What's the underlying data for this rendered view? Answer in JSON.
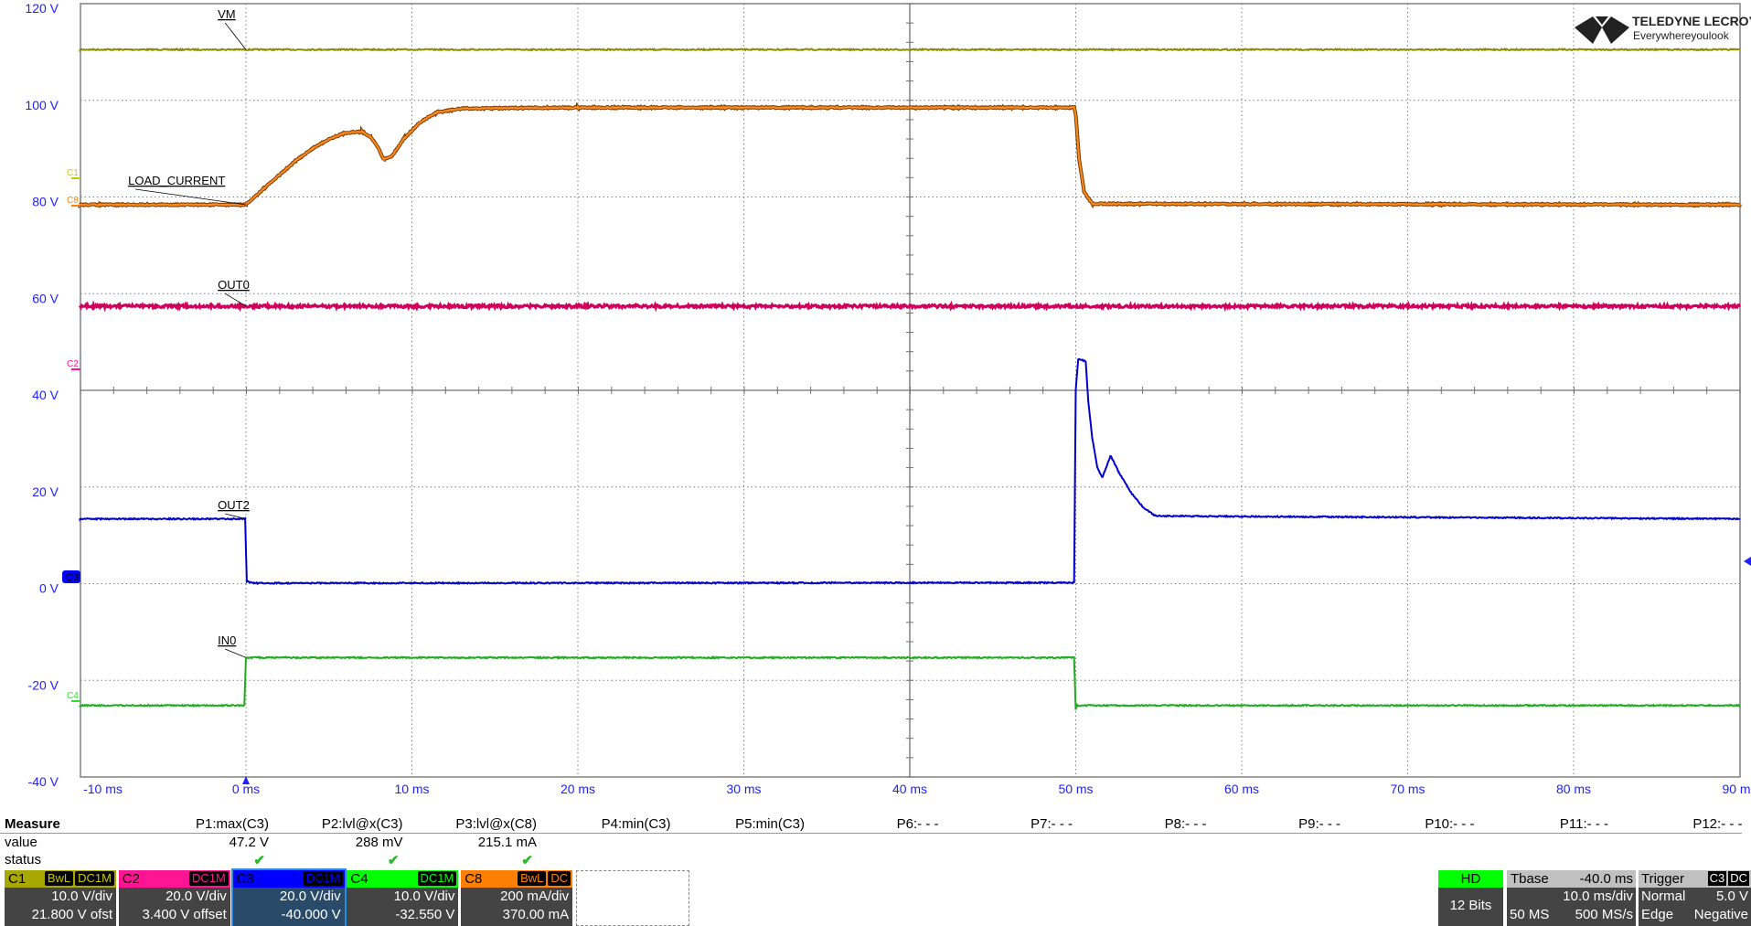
{
  "logo": {
    "brand": "TELEDYNE LECROY",
    "tagline": "Everywhereyoulook"
  },
  "axes": {
    "y_ticks": [
      "120 V",
      "100 V",
      "80 V",
      "60 V",
      "40 V",
      "20 V",
      "0 V",
      "-20 V",
      "-40 V"
    ],
    "x_ticks": [
      "-10 ms",
      "0 ms",
      "10 ms",
      "20 ms",
      "30 ms",
      "40 ms",
      "50 ms",
      "60 ms",
      "70 ms",
      "80 ms",
      "90 ms"
    ]
  },
  "colors": {
    "C1": "#a8a800",
    "C2": "#ff1493",
    "C3": "#0000ff",
    "C4": "#00ff00",
    "C8": "#ff8000",
    "grid": "#808080",
    "axis_text": "#2020ff"
  },
  "traces": [
    {
      "channel": "C1",
      "label": "VM",
      "color": "#8c8c00",
      "points": [
        [
          -10,
          110.5
        ],
        [
          90,
          110.5
        ]
      ]
    },
    {
      "channel": "C8",
      "label": "LOAD_CURRENT",
      "color": "#e07000",
      "points": [
        [
          -10,
          78.4
        ],
        [
          0,
          78.4
        ],
        [
          1,
          81.5
        ],
        [
          2,
          84.5
        ],
        [
          3,
          87.5
        ],
        [
          4,
          90
        ],
        [
          5,
          92
        ],
        [
          6,
          93.3
        ],
        [
          7,
          93.5
        ],
        [
          7.5,
          92.5
        ],
        [
          8,
          90
        ],
        [
          8.3,
          87.8
        ],
        [
          8.8,
          88.5
        ],
        [
          9.5,
          92
        ],
        [
          10.5,
          95.5
        ],
        [
          11.5,
          97.5
        ],
        [
          13,
          98.3
        ],
        [
          20,
          98.5
        ],
        [
          49.9,
          98.5
        ],
        [
          50,
          97
        ],
        [
          50.2,
          88
        ],
        [
          50.5,
          81
        ],
        [
          51,
          78.6
        ],
        [
          90,
          78.4
        ]
      ]
    },
    {
      "channel": "C2",
      "label": "OUT0",
      "color": "#d0005a",
      "points": [
        [
          -10,
          57.4
        ],
        [
          90,
          57.4
        ]
      ]
    },
    {
      "channel": "C3",
      "label": "OUT2",
      "color": "#0000cc",
      "points": [
        [
          -10,
          13.4
        ],
        [
          -0.05,
          13.4
        ],
        [
          0.05,
          0.5
        ],
        [
          0.5,
          0.1
        ],
        [
          49.9,
          0.2
        ],
        [
          50,
          40
        ],
        [
          50.15,
          46.5
        ],
        [
          50.6,
          46
        ],
        [
          50.75,
          38
        ],
        [
          51,
          30
        ],
        [
          51.3,
          24
        ],
        [
          51.6,
          22
        ],
        [
          52.1,
          26.5
        ],
        [
          52.6,
          23
        ],
        [
          53.3,
          19
        ],
        [
          54,
          16
        ],
        [
          54.8,
          14
        ],
        [
          90,
          13.4
        ]
      ]
    },
    {
      "channel": "C4",
      "label": "IN0",
      "color": "#22aa22",
      "points": [
        [
          -10,
          -25.2
        ],
        [
          -0.1,
          -25.2
        ],
        [
          0,
          -15.3
        ],
        [
          49.9,
          -15.3
        ],
        [
          50,
          -26
        ],
        [
          50.1,
          -25.2
        ],
        [
          90,
          -25.2
        ]
      ]
    }
  ],
  "channel_markers": [
    "C1",
    "C8",
    "C2",
    "C3",
    "C4"
  ],
  "measure": {
    "title": "Measure",
    "row_value": "value",
    "row_status": "status",
    "params": [
      {
        "name": "P1:max(C3)",
        "value": "47.2 V",
        "status": "✔"
      },
      {
        "name": "P2:lvl@x(C3)",
        "value": "288 mV",
        "status": "✔"
      },
      {
        "name": "P3:lvl@x(C8)",
        "value": "215.1 mA",
        "status": "✔"
      },
      {
        "name": "P4:min(C3)",
        "value": "",
        "status": ""
      },
      {
        "name": "P5:min(C3)",
        "value": "",
        "status": ""
      },
      {
        "name": "P6:- - -",
        "value": "",
        "status": ""
      },
      {
        "name": "P7:- - -",
        "value": "",
        "status": ""
      },
      {
        "name": "P8:- - -",
        "value": "",
        "status": ""
      },
      {
        "name": "P9:- - -",
        "value": "",
        "status": ""
      },
      {
        "name": "P10:- - -",
        "value": "",
        "status": ""
      },
      {
        "name": "P11:- - -",
        "value": "",
        "status": ""
      },
      {
        "name": "P12:- - -",
        "value": "",
        "status": ""
      }
    ]
  },
  "channels": [
    {
      "name": "C1",
      "tags": [
        "BwL",
        "DC1M"
      ],
      "scale": "10.0 V/div",
      "offset": "21.800 V ofst",
      "color": "#a8a800",
      "tagcolor": "#c8c800"
    },
    {
      "name": "C2",
      "tags": [
        "DC1M"
      ],
      "scale": "20.0 V/div",
      "offset": "3.400 V offset",
      "color": "#ff1493",
      "tagcolor": "#ff1493"
    },
    {
      "name": "C3",
      "tags": [
        "DC1M"
      ],
      "scale": "20.0 V/div",
      "offset": "-40.000 V",
      "color": "#0000ff",
      "tagcolor": "#0000ff",
      "selected": true
    },
    {
      "name": "C4",
      "tags": [
        "DC1M"
      ],
      "scale": "10.0 V/div",
      "offset": "-32.550 V",
      "color": "#00ff00",
      "tagcolor": "#00ff00"
    },
    {
      "name": "C8",
      "tags": [
        "BwL",
        "DC"
      ],
      "scale": "200 mA/div",
      "offset": "370.00 mA",
      "color": "#ff8000",
      "tagcolor": "#ff8000"
    }
  ],
  "acq": {
    "hd": "HD",
    "bits": "12 Bits"
  },
  "timebase": {
    "label": "Tbase",
    "delay": "-40.0 ms",
    "scale": "10.0 ms/div",
    "samples": "50 MS",
    "rate": "500 MS/s"
  },
  "trigger": {
    "label": "Trigger",
    "source": "C3",
    "coupling": "DC",
    "mode": "Normal",
    "level": "5.0 V",
    "type": "Edge",
    "slope": "Negative"
  }
}
